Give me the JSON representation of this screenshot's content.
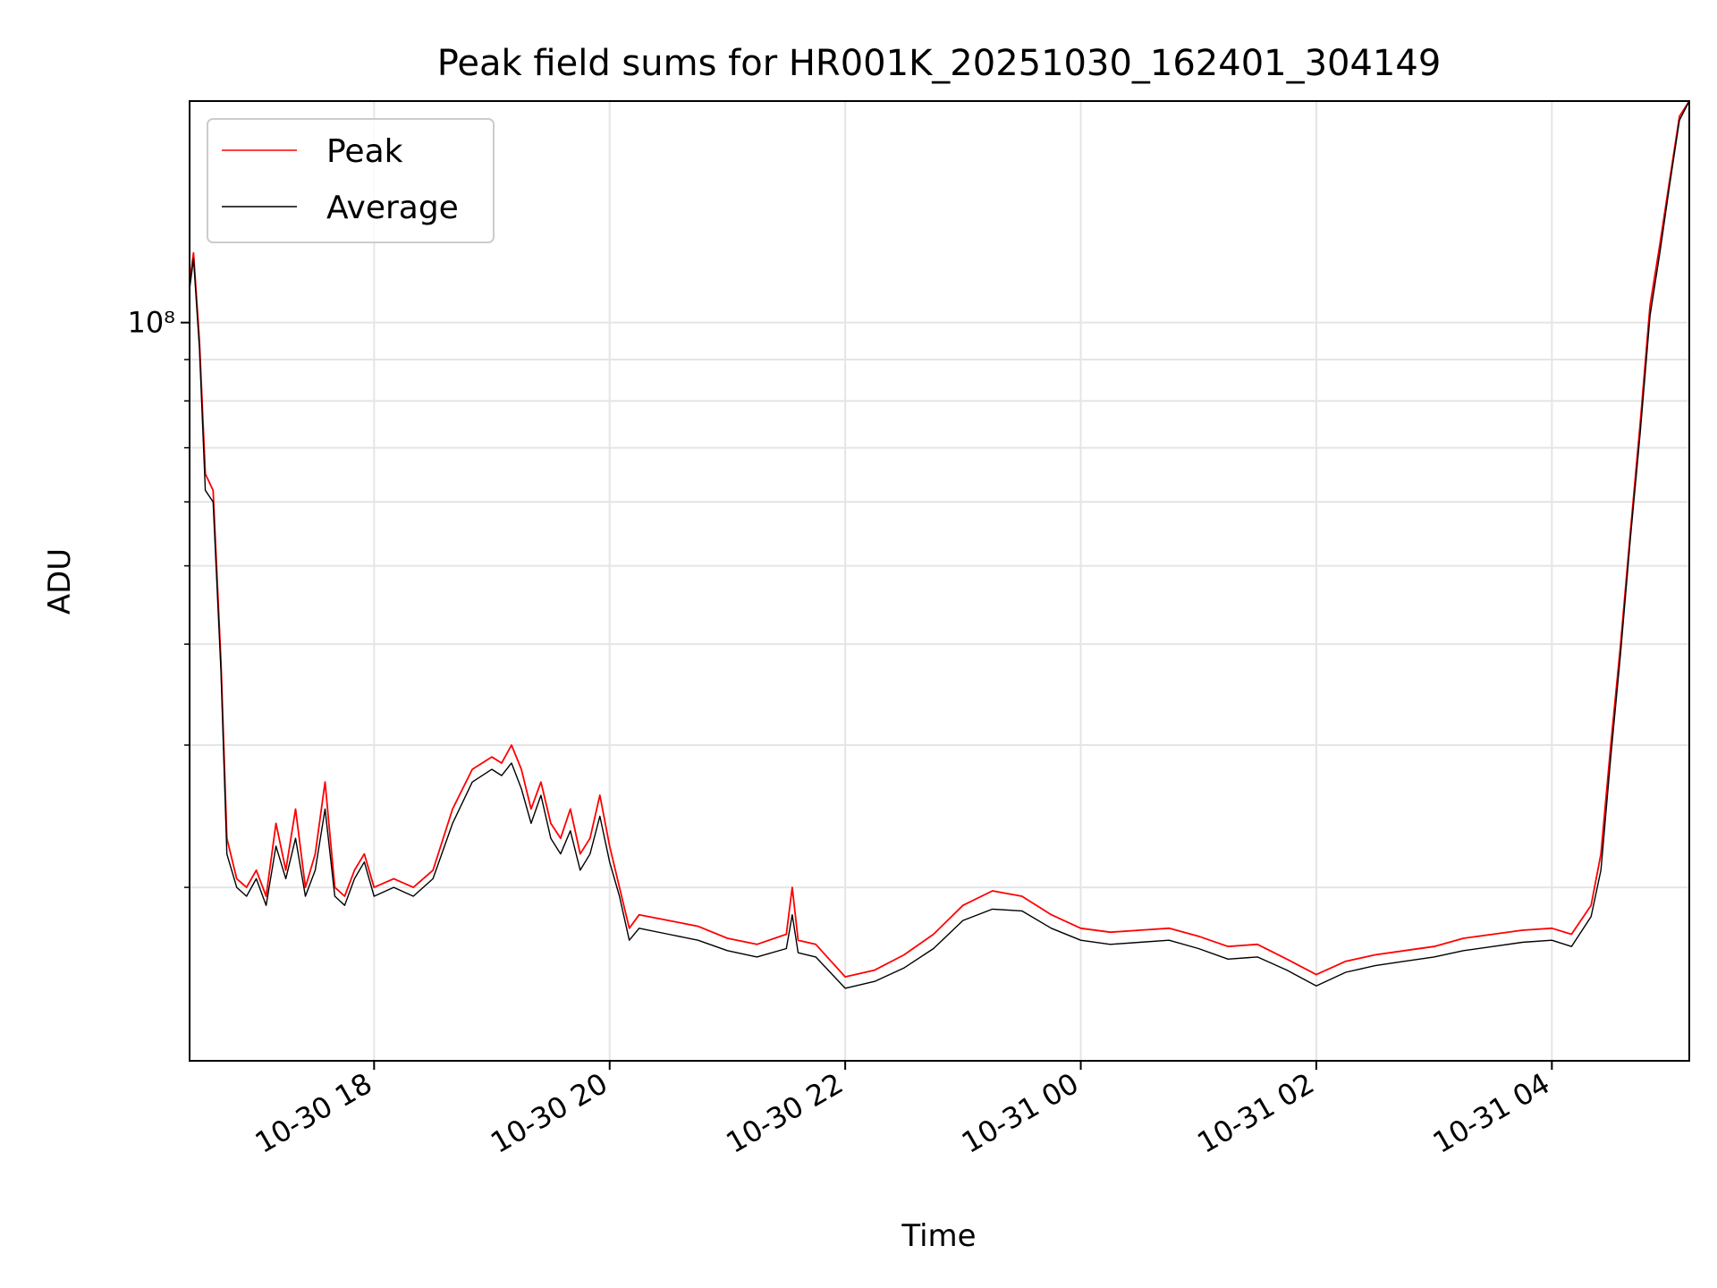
{
  "chart_data": {
    "type": "line",
    "title": "Peak field sums for HR001K_20251030_162401_304149",
    "xlabel": "Time",
    "ylabel": "ADU",
    "y_scale": "log",
    "ylim": [
      12200000,
      188000000
    ],
    "xlim": [
      "2025-10-30 16:26",
      "2025-10-31 05:10"
    ],
    "x_ticks": [
      "2025-10-30 18:00",
      "2025-10-30 20:00",
      "2025-10-30 22:00",
      "2025-10-31 00:00",
      "2025-10-31 02:00",
      "2025-10-31 04:00"
    ],
    "x_tick_labels": [
      "10-30 18",
      "10-30 20",
      "10-30 22",
      "10-31 00",
      "10-31 02",
      "10-31 04"
    ],
    "y_ticks": [
      100000000
    ],
    "y_tick_labels": [
      "10⁸"
    ],
    "grid": true,
    "legend_position": "top-left",
    "series": [
      {
        "name": "Peak",
        "color": "#ff0000",
        "x": [
          "2025-10-30 16:26",
          "2025-10-30 16:28",
          "2025-10-30 16:31",
          "2025-10-30 16:34",
          "2025-10-30 16:38",
          "2025-10-30 16:42",
          "2025-10-30 16:45",
          "2025-10-30 16:50",
          "2025-10-30 16:55",
          "2025-10-30 17:00",
          "2025-10-30 17:05",
          "2025-10-30 17:10",
          "2025-10-30 17:15",
          "2025-10-30 17:20",
          "2025-10-30 17:25",
          "2025-10-30 17:30",
          "2025-10-30 17:35",
          "2025-10-30 17:40",
          "2025-10-30 17:45",
          "2025-10-30 17:50",
          "2025-10-30 17:55",
          "2025-10-30 18:00",
          "2025-10-30 18:10",
          "2025-10-30 18:20",
          "2025-10-30 18:30",
          "2025-10-30 18:40",
          "2025-10-30 18:50",
          "2025-10-30 19:00",
          "2025-10-30 19:05",
          "2025-10-30 19:10",
          "2025-10-30 19:15",
          "2025-10-30 19:20",
          "2025-10-30 19:25",
          "2025-10-30 19:30",
          "2025-10-30 19:35",
          "2025-10-30 19:40",
          "2025-10-30 19:45",
          "2025-10-30 19:50",
          "2025-10-30 19:55",
          "2025-10-30 20:00",
          "2025-10-30 20:05",
          "2025-10-30 20:10",
          "2025-10-30 20:15",
          "2025-10-30 20:30",
          "2025-10-30 20:45",
          "2025-10-30 21:00",
          "2025-10-30 21:15",
          "2025-10-30 21:30",
          "2025-10-30 21:33",
          "2025-10-30 21:36",
          "2025-10-30 21:45",
          "2025-10-30 22:00",
          "2025-10-30 22:15",
          "2025-10-30 22:30",
          "2025-10-30 22:45",
          "2025-10-30 23:00",
          "2025-10-30 23:15",
          "2025-10-30 23:30",
          "2025-10-30 23:45",
          "2025-10-31 00:00",
          "2025-10-31 00:15",
          "2025-10-31 00:30",
          "2025-10-31 00:45",
          "2025-10-31 01:00",
          "2025-10-31 01:15",
          "2025-10-31 01:30",
          "2025-10-31 01:45",
          "2025-10-31 02:00",
          "2025-10-31 02:15",
          "2025-10-31 02:30",
          "2025-10-31 02:45",
          "2025-10-31 03:00",
          "2025-10-31 03:15",
          "2025-10-31 03:30",
          "2025-10-31 03:45",
          "2025-10-31 04:00",
          "2025-10-31 04:10",
          "2025-10-31 04:20",
          "2025-10-31 04:25",
          "2025-10-31 04:30",
          "2025-10-31 04:35",
          "2025-10-31 04:40",
          "2025-10-31 04:45",
          "2025-10-31 04:50",
          "2025-10-31 04:55",
          "2025-10-31 05:00",
          "2025-10-31 05:05",
          "2025-10-31 05:10"
        ],
        "y": [
          112000000,
          122000000,
          95000000,
          65000000,
          62000000,
          38000000,
          23000000,
          20500000,
          20000000,
          21000000,
          19500000,
          24000000,
          21000000,
          25000000,
          20000000,
          22000000,
          27000000,
          20000000,
          19500000,
          21000000,
          22000000,
          20000000,
          20500000,
          20000000,
          21000000,
          25000000,
          28000000,
          29000000,
          28500000,
          30000000,
          28000000,
          25000000,
          27000000,
          24000000,
          23000000,
          25000000,
          22000000,
          23000000,
          26000000,
          22500000,
          20000000,
          17800000,
          18500000,
          18200000,
          17900000,
          17300000,
          17000000,
          17500000,
          20000000,
          17200000,
          17000000,
          15500000,
          15800000,
          16500000,
          17500000,
          19000000,
          19800000,
          19500000,
          18500000,
          17800000,
          17600000,
          17700000,
          17800000,
          17400000,
          16900000,
          17000000,
          16300000,
          15600000,
          16200000,
          16500000,
          16700000,
          16900000,
          17300000,
          17500000,
          17700000,
          17800000,
          17500000,
          19000000,
          22000000,
          30000000,
          40000000,
          55000000,
          75000000,
          105000000,
          125000000,
          150000000,
          180000000,
          188000000
        ]
      },
      {
        "name": "Average",
        "color": "#000000",
        "x": [
          "2025-10-30 16:26",
          "2025-10-30 16:28",
          "2025-10-30 16:31",
          "2025-10-30 16:34",
          "2025-10-30 16:38",
          "2025-10-30 16:42",
          "2025-10-30 16:45",
          "2025-10-30 16:50",
          "2025-10-30 16:55",
          "2025-10-30 17:00",
          "2025-10-30 17:05",
          "2025-10-30 17:10",
          "2025-10-30 17:15",
          "2025-10-30 17:20",
          "2025-10-30 17:25",
          "2025-10-30 17:30",
          "2025-10-30 17:35",
          "2025-10-30 17:40",
          "2025-10-30 17:45",
          "2025-10-30 17:50",
          "2025-10-30 17:55",
          "2025-10-30 18:00",
          "2025-10-30 18:10",
          "2025-10-30 18:20",
          "2025-10-30 18:30",
          "2025-10-30 18:40",
          "2025-10-30 18:50",
          "2025-10-30 19:00",
          "2025-10-30 19:05",
          "2025-10-30 19:10",
          "2025-10-30 19:15",
          "2025-10-30 19:20",
          "2025-10-30 19:25",
          "2025-10-30 19:30",
          "2025-10-30 19:35",
          "2025-10-30 19:40",
          "2025-10-30 19:45",
          "2025-10-30 19:50",
          "2025-10-30 19:55",
          "2025-10-30 20:00",
          "2025-10-30 20:05",
          "2025-10-30 20:10",
          "2025-10-30 20:15",
          "2025-10-30 20:30",
          "2025-10-30 20:45",
          "2025-10-30 21:00",
          "2025-10-30 21:15",
          "2025-10-30 21:30",
          "2025-10-30 21:33",
          "2025-10-30 21:36",
          "2025-10-30 21:45",
          "2025-10-30 22:00",
          "2025-10-30 22:15",
          "2025-10-30 22:30",
          "2025-10-30 22:45",
          "2025-10-30 23:00",
          "2025-10-30 23:15",
          "2025-10-30 23:30",
          "2025-10-30 23:45",
          "2025-10-31 00:00",
          "2025-10-31 00:15",
          "2025-10-31 00:30",
          "2025-10-31 00:45",
          "2025-10-31 01:00",
          "2025-10-31 01:15",
          "2025-10-31 01:30",
          "2025-10-31 01:45",
          "2025-10-31 02:00",
          "2025-10-31 02:15",
          "2025-10-31 02:30",
          "2025-10-31 02:45",
          "2025-10-31 03:00",
          "2025-10-31 03:15",
          "2025-10-31 03:30",
          "2025-10-31 03:45",
          "2025-10-31 04:00",
          "2025-10-31 04:10",
          "2025-10-31 04:20",
          "2025-10-31 04:25",
          "2025-10-31 04:30",
          "2025-10-31 04:35",
          "2025-10-31 04:40",
          "2025-10-31 04:45",
          "2025-10-31 04:50",
          "2025-10-31 04:55",
          "2025-10-31 05:00",
          "2025-10-31 05:05",
          "2025-10-31 05:10"
        ],
        "y": [
          110000000,
          120000000,
          93000000,
          62000000,
          60000000,
          37000000,
          22000000,
          20000000,
          19500000,
          20500000,
          19000000,
          22500000,
          20500000,
          23000000,
          19500000,
          21000000,
          25000000,
          19500000,
          19000000,
          20500000,
          21500000,
          19500000,
          20000000,
          19500000,
          20500000,
          24000000,
          27000000,
          28000000,
          27500000,
          28500000,
          26500000,
          24000000,
          26000000,
          23000000,
          22000000,
          23500000,
          21000000,
          22000000,
          24500000,
          21500000,
          19500000,
          17200000,
          17800000,
          17500000,
          17200000,
          16700000,
          16400000,
          16800000,
          18500000,
          16600000,
          16400000,
          15000000,
          15300000,
          15900000,
          16800000,
          18200000,
          18800000,
          18700000,
          17800000,
          17200000,
          17000000,
          17100000,
          17200000,
          16800000,
          16300000,
          16400000,
          15800000,
          15100000,
          15700000,
          16000000,
          16200000,
          16400000,
          16700000,
          16900000,
          17100000,
          17200000,
          16900000,
          18400000,
          21000000,
          29000000,
          39000000,
          54000000,
          73000000,
          102000000,
          122000000,
          148000000,
          178000000,
          188000000
        ]
      }
    ]
  }
}
